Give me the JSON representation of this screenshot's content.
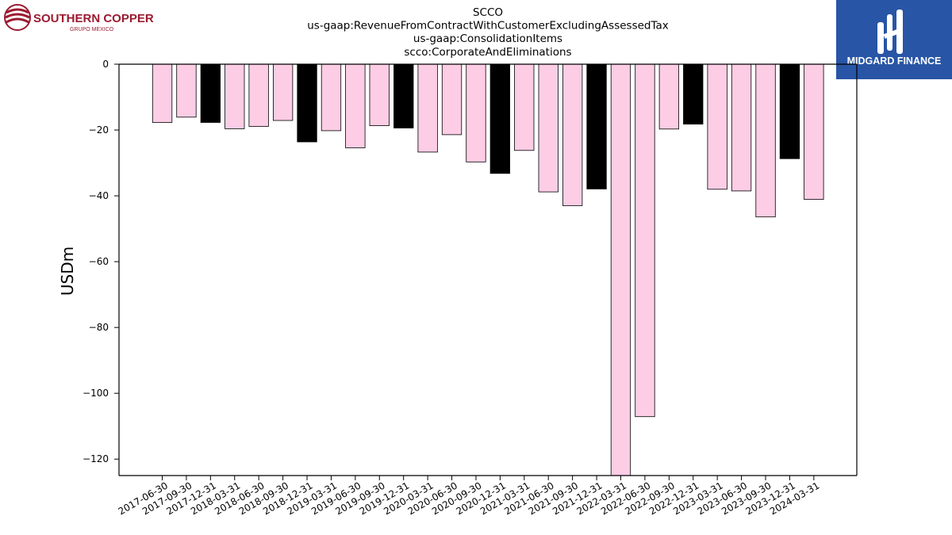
{
  "logos": {
    "left": {
      "name": "SOUTHERN COPPER",
      "sub": "GRUPO MEXICO",
      "color": "#9b1b30"
    },
    "right": {
      "name": "MIDGARD FINANCE",
      "bg": "#2855a5"
    }
  },
  "chart_data": {
    "type": "bar",
    "title": [
      "SCCO",
      "us-gaap:RevenueFromContractWithCustomerExcludingAssessedTax",
      "us-gaap:ConsolidationItems",
      "scco:CorporateAndEliminations"
    ],
    "xlabel": "",
    "ylabel": "USDm",
    "ylim": [
      -125,
      0
    ],
    "yticks": [
      0,
      -20,
      -40,
      -60,
      -80,
      -100,
      -120
    ],
    "grid": false,
    "colors": {
      "quarter": "#fccde5",
      "year_end": "#000000",
      "edge": "#000000"
    },
    "categories": [
      "2017-06-30",
      "2017-09-30",
      "2017-12-31",
      "2018-03-31",
      "2018-06-30",
      "2018-09-30",
      "2018-12-31",
      "2019-03-31",
      "2019-06-30",
      "2019-09-30",
      "2019-12-31",
      "2020-03-31",
      "2020-06-30",
      "2020-09-30",
      "2020-12-31",
      "2021-03-31",
      "2021-06-30",
      "2021-09-30",
      "2021-12-31",
      "2022-03-31",
      "2022-06-30",
      "2022-09-30",
      "2022-12-31",
      "2023-03-31",
      "2023-06-30",
      "2023-09-30",
      "2023-12-31",
      "2024-03-31"
    ],
    "values": [
      -17.7,
      -16.1,
      -17.7,
      -19.6,
      -18.9,
      -17.1,
      -23.6,
      -20.2,
      -25.4,
      -18.7,
      -19.4,
      -26.7,
      -21.4,
      -29.7,
      -33.2,
      -26.2,
      -38.8,
      -43.0,
      -37.9,
      -125.0,
      -107.1,
      -19.7,
      -18.2,
      -38.0,
      -38.5,
      -46.4,
      -28.7,
      -41.1
    ],
    "bar_color_key": [
      "quarter",
      "quarter",
      "year_end",
      "quarter",
      "quarter",
      "quarter",
      "year_end",
      "quarter",
      "quarter",
      "quarter",
      "year_end",
      "quarter",
      "quarter",
      "quarter",
      "year_end",
      "quarter",
      "quarter",
      "quarter",
      "year_end",
      "quarter",
      "quarter",
      "quarter",
      "year_end",
      "quarter",
      "quarter",
      "quarter",
      "year_end",
      "quarter"
    ]
  }
}
